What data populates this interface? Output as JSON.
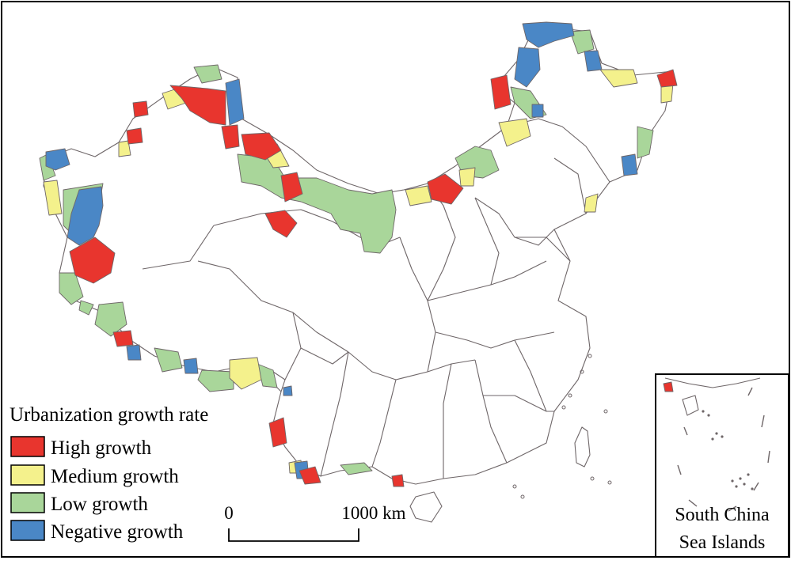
{
  "legend": {
    "title": "Urbanization growth rate",
    "items": [
      {
        "label": "High growth",
        "color": "#e8352e"
      },
      {
        "label": "Medium growth",
        "color": "#f4f18c"
      },
      {
        "label": "Low growth",
        "color": "#a9d69a"
      },
      {
        "label": "Negative growth",
        "color": "#4a87c6"
      }
    ]
  },
  "scale_bar": {
    "start_label": "0",
    "end_label": "1000 km"
  },
  "inset": {
    "line1": "South China",
    "line2": "Sea Islands"
  },
  "colors": {
    "boundary": "#6e6668",
    "frame": "#000000",
    "high": "#e8352e",
    "medium": "#f4f18c",
    "low": "#a9d69a",
    "negative": "#4a87c6"
  }
}
